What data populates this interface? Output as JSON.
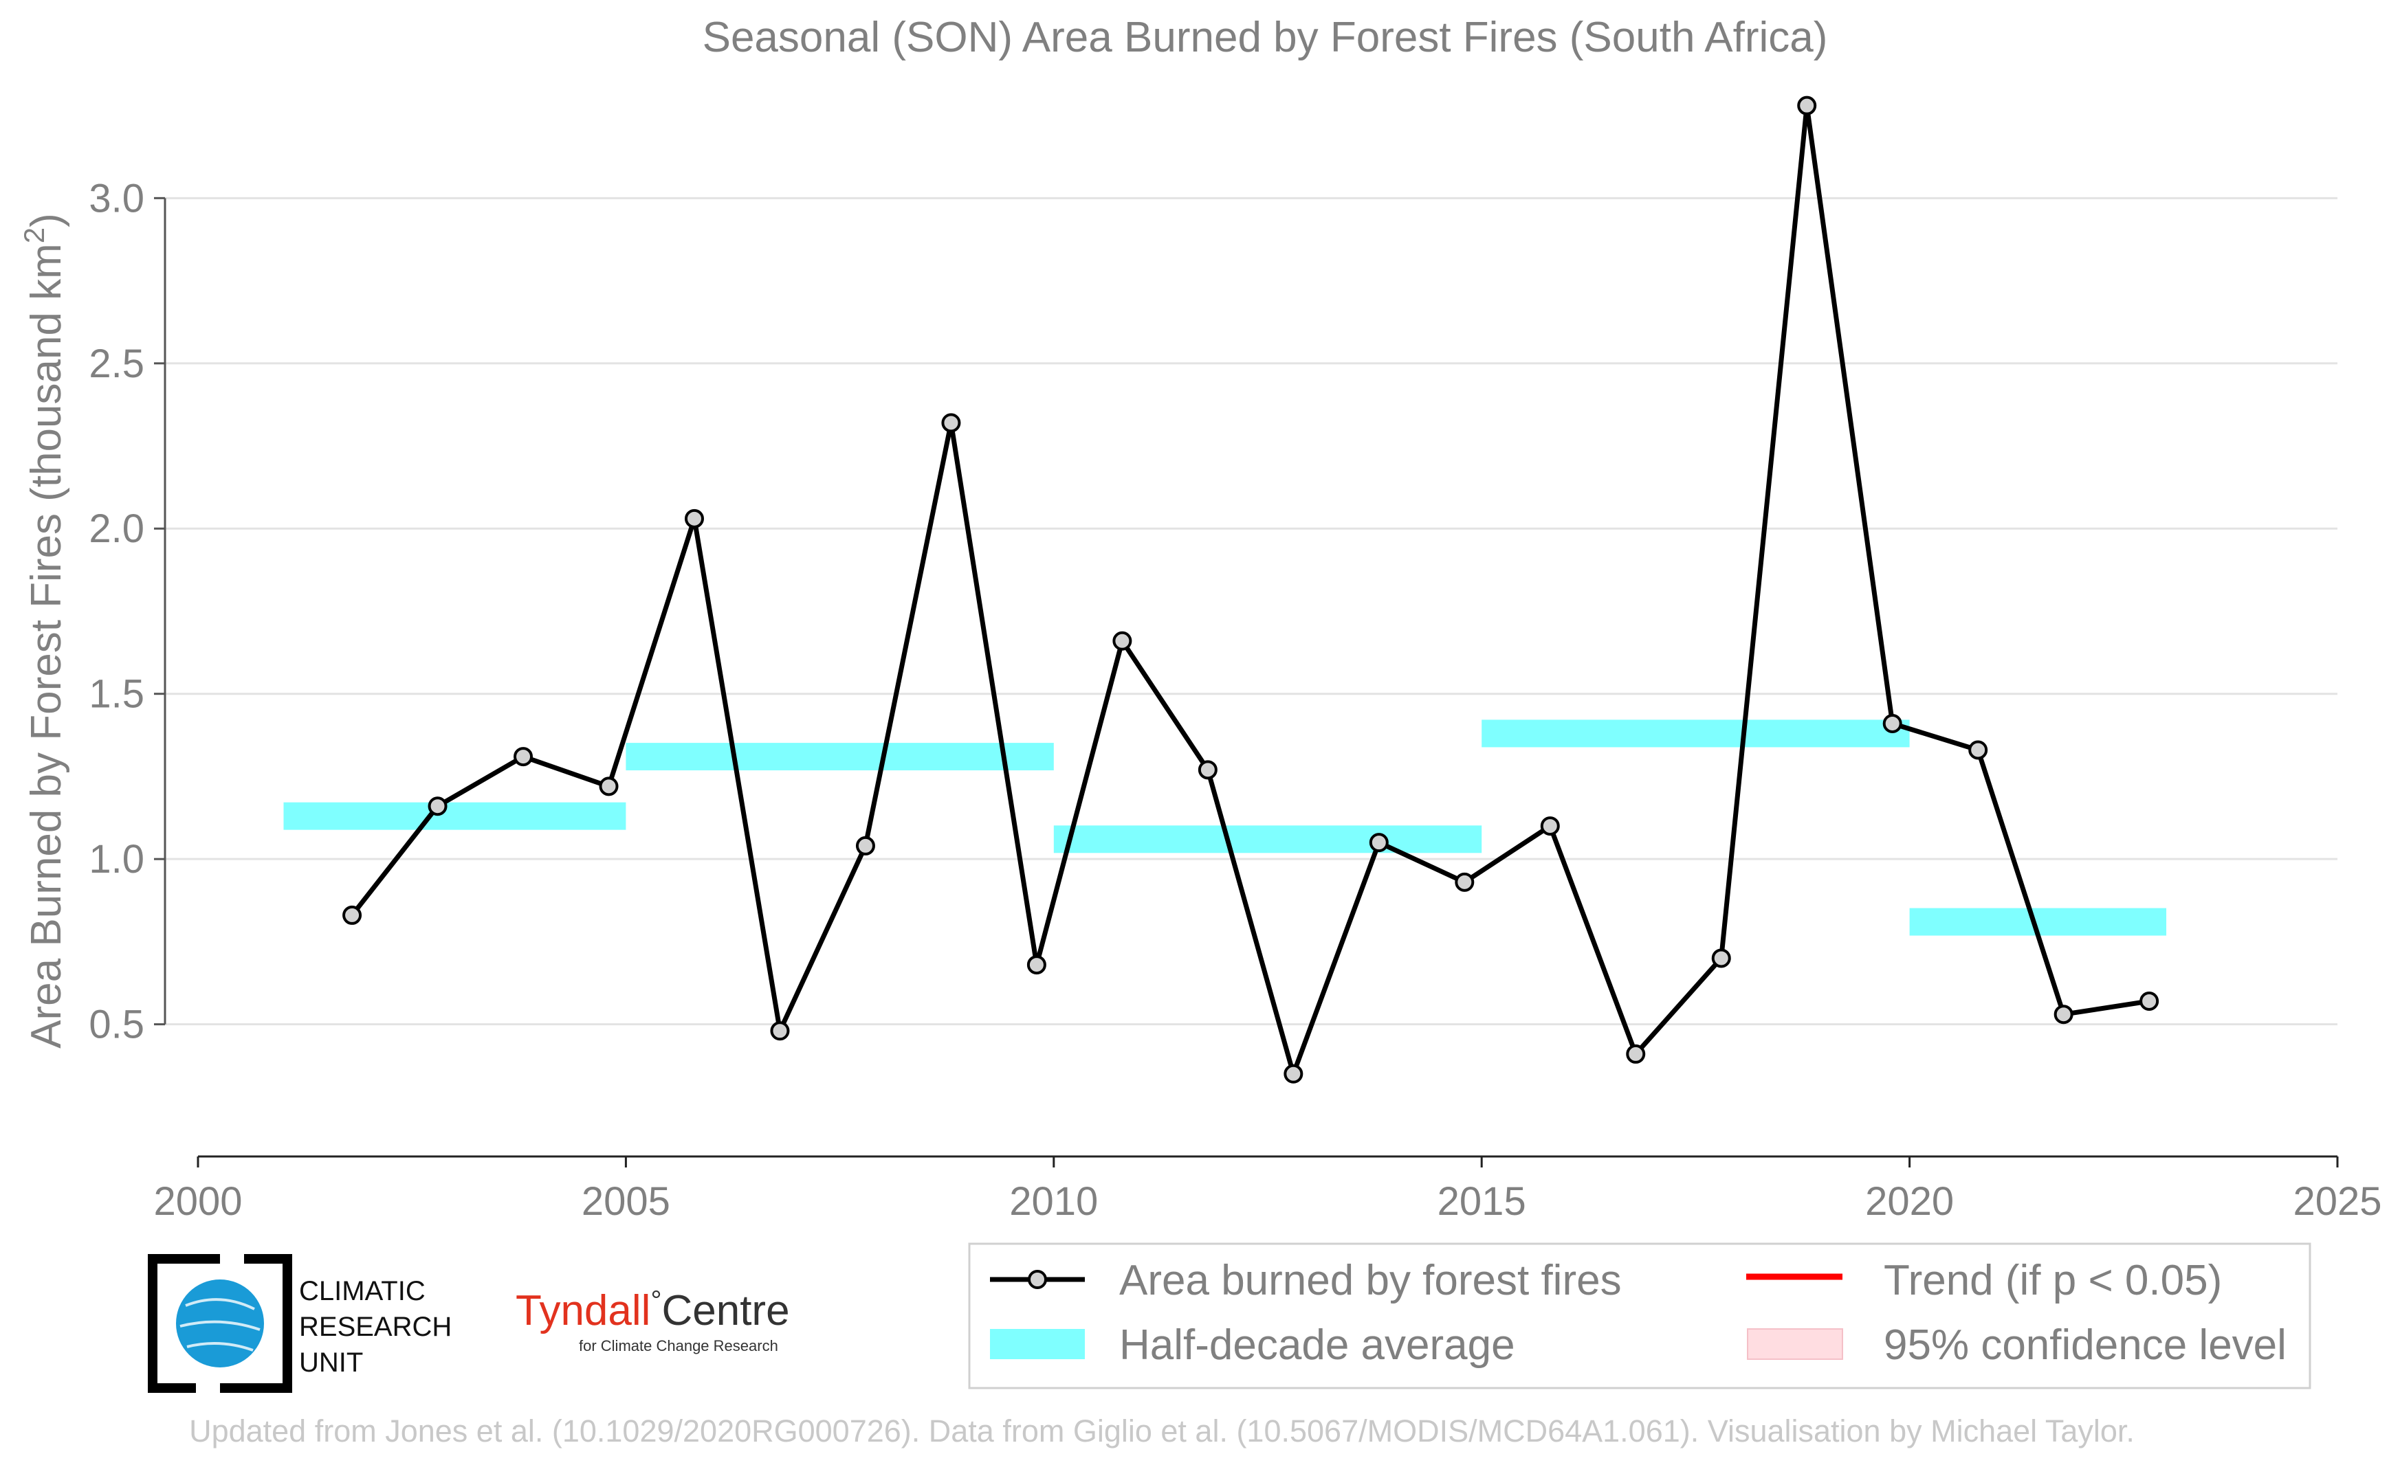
{
  "chart_data": {
    "type": "line",
    "title": "Seasonal (SON) Area Burned by Forest Fires (South Africa)",
    "ylabel": "Area Burned by Forest Fires (thousand km",
    "ylabel_sup": "2",
    "ylabel_end": ")",
    "xlim": [
      2000,
      2025
    ],
    "ylim": [
      0.1,
      3.35
    ],
    "x_ticks": [
      2000,
      2005,
      2010,
      2015,
      2020,
      2025
    ],
    "x_tick_labels": [
      "2000",
      "2005",
      "2010",
      "2015",
      "2020",
      "2025"
    ],
    "y_ticks": [
      0.5,
      1.0,
      1.5,
      2.0,
      2.5,
      3.0
    ],
    "y_tick_labels": [
      "0.5",
      "1.0",
      "1.5",
      "2.0",
      "2.5",
      "3.0"
    ],
    "grid": "horizontal",
    "legend_position": "bottom-right",
    "series": [
      {
        "name": "Area burned by forest fires",
        "color": "#000000",
        "marker_fill": "#d3d3d3",
        "x": [
          2001.8,
          2002.8,
          2003.8,
          2004.8,
          2005.8,
          2006.8,
          2007.8,
          2008.8,
          2009.8,
          2010.8,
          2011.8,
          2012.8,
          2013.8,
          2014.8,
          2015.8,
          2016.8,
          2017.8,
          2018.8,
          2019.8,
          2020.8,
          2021.8,
          2022.8
        ],
        "values": [
          0.83,
          1.16,
          1.31,
          1.22,
          2.03,
          0.48,
          1.04,
          2.32,
          0.68,
          1.66,
          1.27,
          0.35,
          1.05,
          0.93,
          1.1,
          0.41,
          0.7,
          3.28,
          1.41,
          1.33,
          0.53,
          0.57
        ]
      }
    ],
    "half_decade_averages": {
      "name": "Half-decade average",
      "color": "#7fffff",
      "segments": [
        {
          "x_start": 2001,
          "x_end": 2005,
          "value": 1.13
        },
        {
          "x_start": 2005,
          "x_end": 2010,
          "value": 1.31
        },
        {
          "x_start": 2010,
          "x_end": 2015,
          "value": 1.06
        },
        {
          "x_start": 2015,
          "x_end": 2020,
          "value": 1.38
        },
        {
          "x_start": 2020,
          "x_end": 2023,
          "value": 0.81
        }
      ]
    },
    "legend": [
      {
        "label": "Area burned by forest fires",
        "kind": "line-marker",
        "color": "#000000"
      },
      {
        "label": "Trend (if p < 0.05)",
        "kind": "line",
        "color": "#ff0000"
      },
      {
        "label": "Half-decade average",
        "kind": "band",
        "color": "#7fffff"
      },
      {
        "label": "95% confidence level",
        "kind": "band",
        "color": "#ffdde1"
      }
    ]
  },
  "logos": {
    "cru_lines": [
      "CLIMATIC",
      "RESEARCH",
      "UNIT"
    ],
    "tyndall_name": "Tyndall",
    "tyndall_degree": "°",
    "tyndall_centre": "Centre",
    "tyndall_sub": "for Climate Change Research"
  },
  "footer": "Updated from Jones et al. (10.1029/2020RG000726). Data from Giglio et al. (10.5067/MODIS/MCD64A1.061). Visualisation by Michael Taylor."
}
